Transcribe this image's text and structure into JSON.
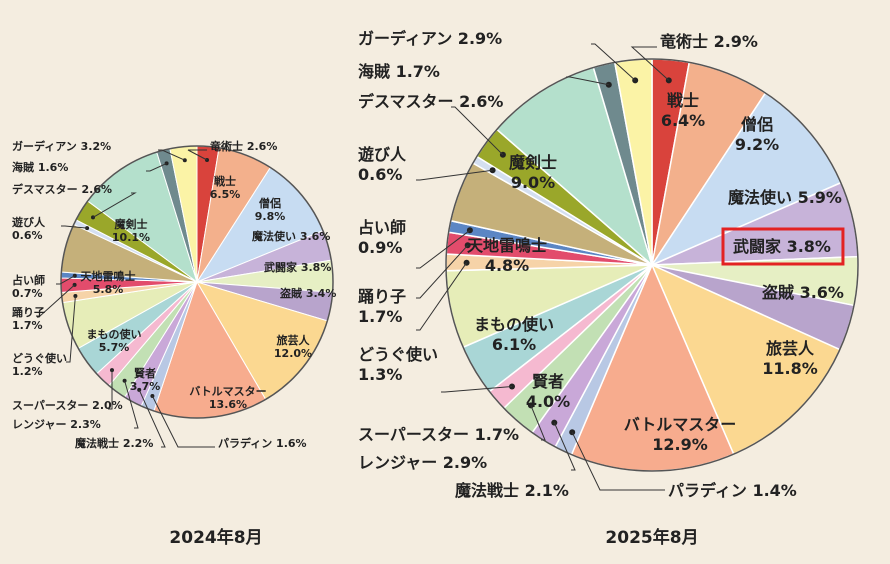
{
  "chart_data": [
    {
      "type": "pie",
      "title": "2024年8月",
      "slices": [
        {
          "label": "竜術士 2.6%",
          "value": 2.6,
          "color": "#d9433c"
        },
        {
          "label": "戦士\n6.5%",
          "value": 6.5,
          "color": "#f3b08c"
        },
        {
          "label": "僧侶\n9.8%",
          "value": 9.8,
          "color": "#c7dcf2"
        },
        {
          "label": "魔法使い 3.6%",
          "value": 3.6,
          "color": "#c7b3d9"
        },
        {
          "label": "武闘家 3.8%",
          "value": 3.8,
          "color": "#e6efc4"
        },
        {
          "label": "盗賊 3.4%",
          "value": 3.4,
          "color": "#b8a4cc"
        },
        {
          "label": "旅芸人\n12.0%",
          "value": 12.0,
          "color": "#fbd891"
        },
        {
          "label": "バトルマスター\n13.6%",
          "value": 13.6,
          "color": "#f7ac8e"
        },
        {
          "label": "パラディン 1.6%",
          "value": 1.6,
          "color": "#b8c8e4"
        },
        {
          "label": "魔法戦士 2.2%",
          "value": 2.2,
          "color": "#c9a8d8"
        },
        {
          "label": "レンジャー 2.3%",
          "value": 2.3,
          "color": "#c2e0b4"
        },
        {
          "label": "スーパースター 2.0%",
          "value": 2.0,
          "color": "#f5b9d0"
        },
        {
          "label": "賢者\n3.7%",
          "value": 3.7,
          "color": "#a9d6d6"
        },
        {
          "label": "まもの使い\n5.7%",
          "value": 5.7,
          "color": "#e6edb8"
        },
        {
          "label": "どうぐ使い\n1.2%",
          "value": 1.2,
          "color": "#f6d3a8"
        },
        {
          "label": "踊り子\n1.7%",
          "value": 1.7,
          "color": "#e24c6c"
        },
        {
          "label": "占い師\n0.7%",
          "value": 0.7,
          "color": "#5b86c4"
        },
        {
          "label": "天地雷鳴士\n5.8%",
          "value": 5.8,
          "color": "#c5b07a"
        },
        {
          "label": "遊び人\n0.6%",
          "value": 0.6,
          "color": "#d4dff0"
        },
        {
          "label": "デスマスター 2.6%",
          "value": 2.6,
          "color": "#9aa72a"
        },
        {
          "label": "魔剣士\n10.1%",
          "value": 10.1,
          "color": "#b4e0cc"
        },
        {
          "label": "海賊 1.6%",
          "value": 1.6,
          "color": "#6f8a8e"
        },
        {
          "label": "ガーディアン 3.2%",
          "value": 3.2,
          "color": "#fbf3a6"
        }
      ]
    },
    {
      "type": "pie",
      "title": "2025年8月",
      "slices": [
        {
          "label": "竜術士 2.9%",
          "value": 2.9,
          "color": "#d9433c"
        },
        {
          "label": "戦士\n6.4%",
          "value": 6.4,
          "color": "#f3b08c"
        },
        {
          "label": "僧侶\n9.2%",
          "value": 9.2,
          "color": "#c7dcf2"
        },
        {
          "label": "魔法使い 5.9%",
          "value": 5.9,
          "color": "#c7b3d9"
        },
        {
          "label": "武闘家 3.8%",
          "value": 3.8,
          "color": "#e6efc4"
        },
        {
          "label": "盗賊 3.6%",
          "value": 3.6,
          "color": "#b8a4cc"
        },
        {
          "label": "旅芸人\n11.8%",
          "value": 11.8,
          "color": "#fbd891"
        },
        {
          "label": "バトルマスター\n12.9%",
          "value": 12.9,
          "color": "#f7ac8e"
        },
        {
          "label": "パラディン 1.4%",
          "value": 1.4,
          "color": "#b8c8e4"
        },
        {
          "label": "魔法戦士 2.1%",
          "value": 2.1,
          "color": "#c9a8d8"
        },
        {
          "label": "レンジャー 2.9%",
          "value": 2.9,
          "color": "#c2e0b4"
        },
        {
          "label": "スーパースター 1.7%",
          "value": 1.7,
          "color": "#f5b9d0"
        },
        {
          "label": "賢者\n4.0%",
          "value": 4.0,
          "color": "#a9d6d6"
        },
        {
          "label": "まもの使い\n6.1%",
          "value": 6.1,
          "color": "#e6edb8"
        },
        {
          "label": "どうぐ使い\n1.3%",
          "value": 1.3,
          "color": "#f6d3a8"
        },
        {
          "label": "踊り子\n1.7%",
          "value": 1.7,
          "color": "#e24c6c"
        },
        {
          "label": "占い師\n0.9%",
          "value": 0.9,
          "color": "#5b86c4"
        },
        {
          "label": "天地雷鳴士\n4.8%",
          "value": 4.8,
          "color": "#c5b07a"
        },
        {
          "label": "遊び人\n0.6%",
          "value": 0.6,
          "color": "#d4dff0"
        },
        {
          "label": "デスマスター 2.6%",
          "value": 2.6,
          "color": "#9aa72a"
        },
        {
          "label": "魔剣士\n9.0%",
          "value": 9.0,
          "color": "#b4e0cc"
        },
        {
          "label": "海賊 1.7%",
          "value": 1.7,
          "color": "#6f8a8e"
        },
        {
          "label": "ガーディアン 2.9%",
          "value": 2.9,
          "color": "#fbf3a6"
        }
      ],
      "highlighted": "武闘家 3.8%"
    }
  ]
}
